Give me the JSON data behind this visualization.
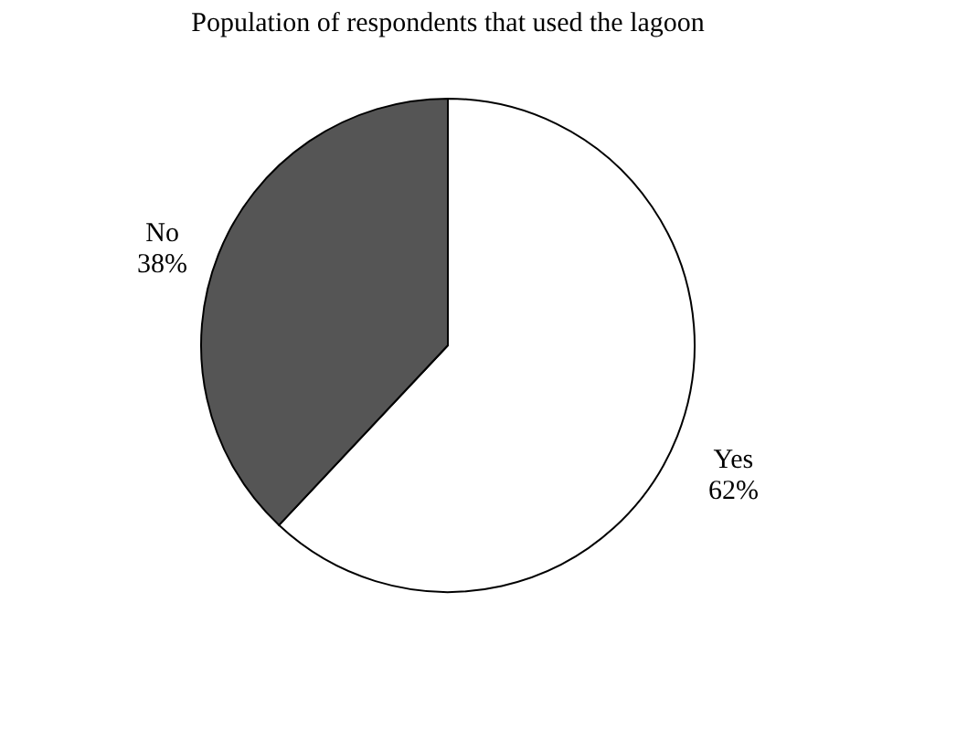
{
  "chart_data": {
    "type": "pie",
    "title": "Population of respondents that used the lagoon",
    "categories": [
      "Yes",
      "No"
    ],
    "values": [
      62,
      38
    ],
    "colors": [
      "#ffffff",
      "#555555"
    ],
    "value_labels": [
      "62%",
      "38%"
    ],
    "legend": false
  }
}
